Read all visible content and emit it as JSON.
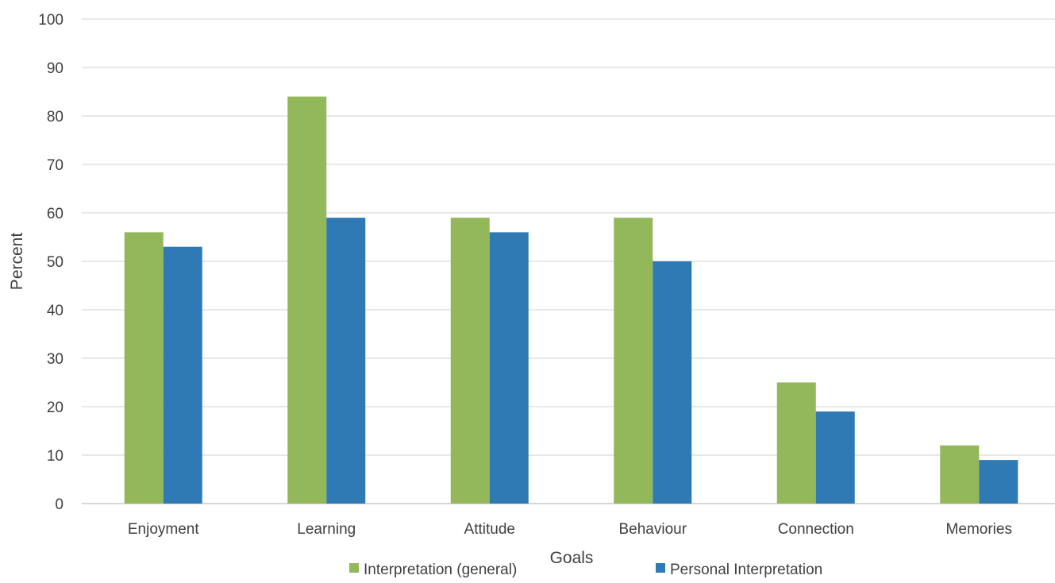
{
  "chart_data": {
    "type": "bar",
    "title": "",
    "xlabel": "Goals",
    "ylabel": "Percent",
    "ylim": [
      0,
      100
    ],
    "yticks": [
      0,
      10,
      20,
      30,
      40,
      50,
      60,
      70,
      80,
      90,
      100
    ],
    "grid": true,
    "legend_position": "bottom",
    "categories": [
      "Enjoyment",
      "Learning",
      "Attitude",
      "Behaviour",
      "Connection",
      "Memories"
    ],
    "series": [
      {
        "name": "Interpretation (general)",
        "color": "#92b85a",
        "values": [
          56,
          84,
          59,
          59,
          25,
          12
        ]
      },
      {
        "name": "Personal Interpretation",
        "color": "#2f7ab5",
        "values": [
          53,
          59,
          56,
          50,
          19,
          9
        ]
      }
    ]
  }
}
